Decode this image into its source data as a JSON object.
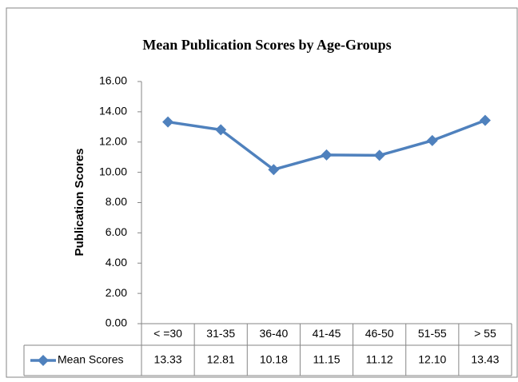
{
  "chart_data": {
    "type": "line",
    "title": "Mean Publication Scores by Age-Groups",
    "y_label": "Publication Scores",
    "categories": [
      "< =30",
      "31-35",
      "36-40",
      "41-45",
      "46-50",
      "51-55",
      "> 55"
    ],
    "series": [
      {
        "name": "Mean Scores",
        "color": "#4f81bd",
        "values": [
          13.33,
          12.81,
          10.18,
          11.15,
          11.12,
          12.1,
          13.43
        ],
        "value_labels": [
          "13.33",
          "12.81",
          "10.18",
          "11.15",
          "11.12",
          "12.10",
          "13.43"
        ]
      }
    ],
    "ylim": [
      0,
      16
    ],
    "yticks": [
      {
        "value": 0,
        "label": "0.00"
      },
      {
        "value": 2,
        "label": "2.00"
      },
      {
        "value": 4,
        "label": "4.00"
      },
      {
        "value": 6,
        "label": "6.00"
      },
      {
        "value": 8,
        "label": "8.00"
      },
      {
        "value": 10,
        "label": "10.00"
      },
      {
        "value": 12,
        "label": "12.00"
      },
      {
        "value": 14,
        "label": "14.00"
      },
      {
        "value": 16,
        "label": "16.00"
      }
    ],
    "grid": false,
    "data_table": true
  }
}
